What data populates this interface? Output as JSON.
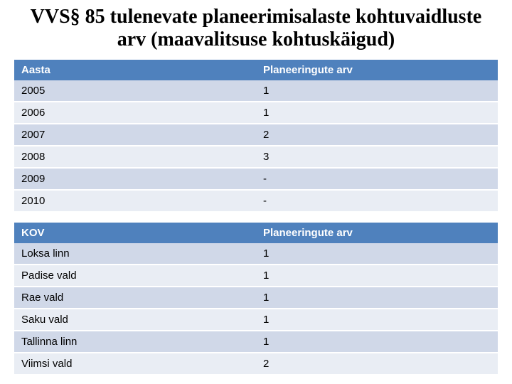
{
  "title": "VVS§ 85 tulenevate planeerimisalaste kohtuvaidluste arv (maavalitsuse kohtuskäigud)",
  "table1": {
    "header": {
      "col1": "Aasta",
      "col2": "Planeeringute arv"
    },
    "rows": [
      {
        "c1": "2005",
        "c2": "1"
      },
      {
        "c1": "2006",
        "c2": "1"
      },
      {
        "c1": "2007",
        "c2": "2"
      },
      {
        "c1": "2008",
        "c2": "3"
      },
      {
        "c1": "2009",
        "c2": "-"
      },
      {
        "c1": "2010",
        "c2": "-"
      }
    ]
  },
  "table2": {
    "header": {
      "col1": "KOV",
      "col2": "Planeeringute arv"
    },
    "rows": [
      {
        "c1": "Loksa linn",
        "c2": "1"
      },
      {
        "c1": "Padise vald",
        "c2": "1"
      },
      {
        "c1": "Rae vald",
        "c2": "1"
      },
      {
        "c1": "Saku vald",
        "c2": "1"
      },
      {
        "c1": "Tallinna linn",
        "c2": "1"
      },
      {
        "c1": "Viimsi vald",
        "c2": "2"
      }
    ]
  },
  "colors": {
    "header_bg": "#4f81bd",
    "band_a": "#d0d8e8",
    "band_b": "#e9edf4",
    "text": "#000000",
    "header_text": "#ffffff",
    "background": "#ffffff"
  }
}
